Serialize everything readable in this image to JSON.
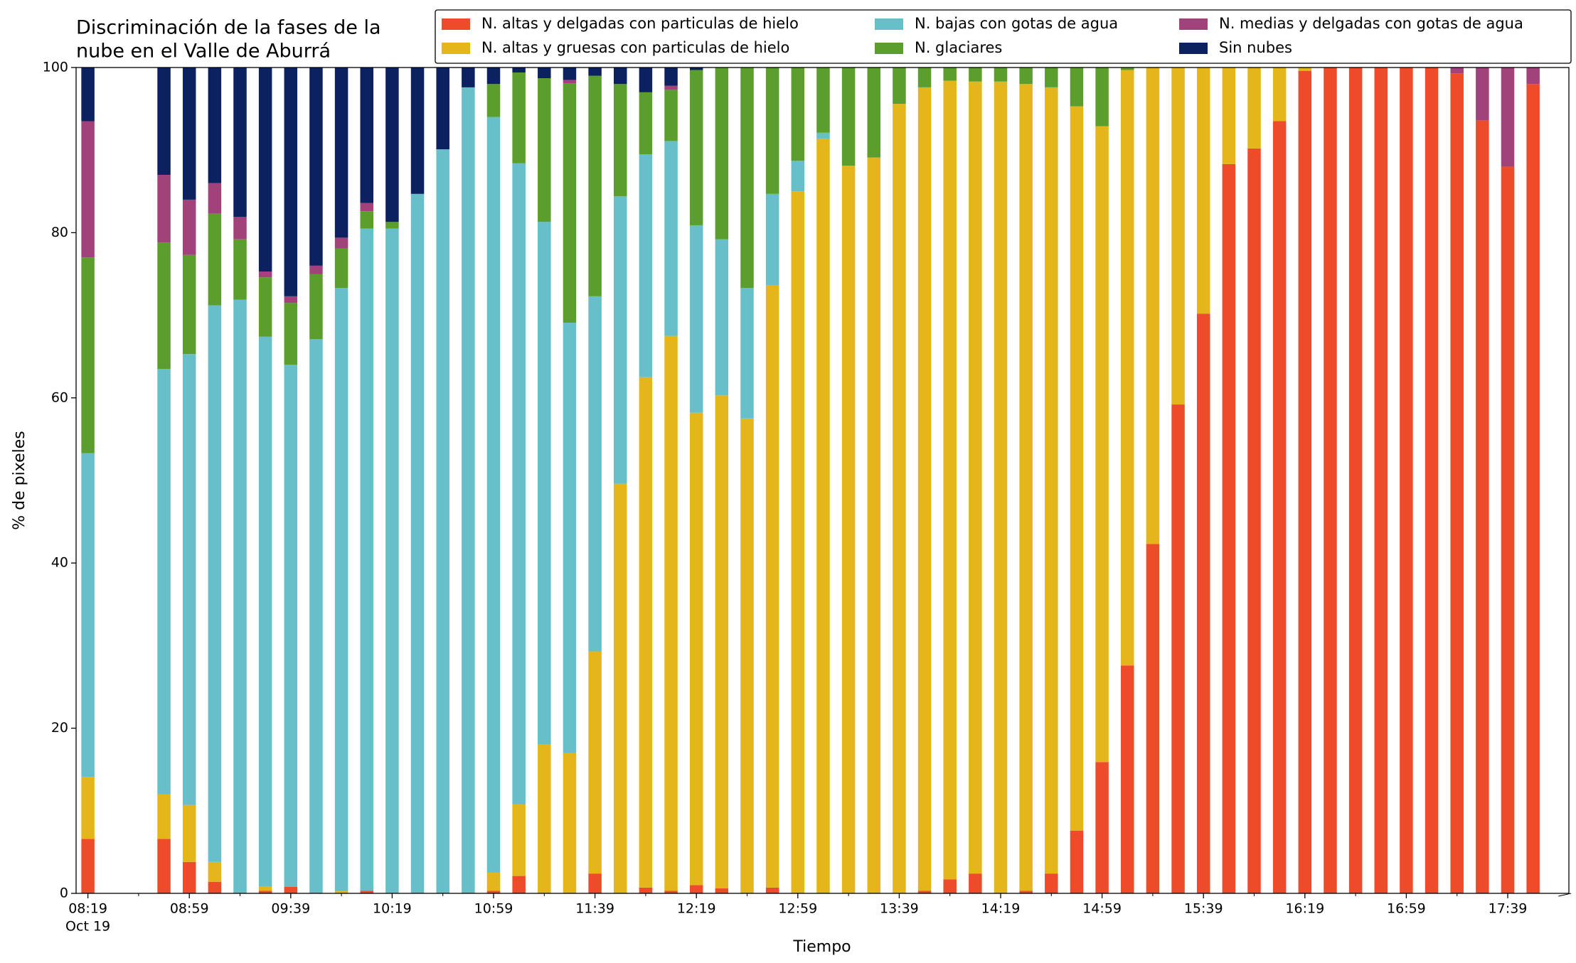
{
  "chart_data": {
    "type": "stacked_bar",
    "title": [
      "Discriminación de la fases de la",
      "nube en el Valle de Aburrá"
    ],
    "xlabel": "Tiempo",
    "ylabel": "% de pixeles",
    "x_date_label": "Oct 19",
    "categories": [
      "08:19",
      null,
      null,
      null,
      "08:59",
      null,
      null,
      null,
      "09:39",
      null,
      null,
      null,
      "10:19",
      null,
      null,
      null,
      "10:59",
      null,
      null,
      null,
      "11:39",
      null,
      null,
      null,
      "12:19",
      null,
      null,
      null,
      "12:59",
      null,
      null,
      null,
      "13:39",
      null,
      null,
      null,
      "14:19",
      null,
      null,
      null,
      "14:59",
      null,
      null,
      null,
      "15:39",
      null,
      null,
      null,
      "16:19",
      null,
      null,
      null,
      "16:59",
      null,
      null,
      null,
      "17:39",
      null
    ],
    "ylim": [
      0,
      100
    ],
    "yticks": [
      0,
      20,
      40,
      60,
      80,
      100
    ],
    "legend": "top",
    "series": [
      {
        "name": "N. altas y delgadas con particulas de hielo",
        "color": "#ee4b2b",
        "values": [
          6.6,
          null,
          null,
          6.6,
          3.8,
          1.4,
          0,
          0.3,
          0.8,
          0,
          0,
          0.3,
          0,
          0,
          0,
          0,
          0.3,
          2.1,
          0,
          0,
          2.4,
          0,
          0.7,
          0.3,
          1,
          0.6,
          0,
          0.7,
          0,
          0,
          0,
          0,
          0,
          0.3,
          1.7,
          2.4,
          0,
          0.3,
          2.4,
          7.6,
          15.9,
          27.6,
          42.3,
          59.2,
          70.2,
          88.3,
          90.2,
          93.5,
          99.6,
          100,
          100,
          100,
          100,
          100,
          99.3,
          93.6,
          88,
          98
        ]
      },
      {
        "name": "N. altas y gruesas con particulas de hielo",
        "color": "#e4b61a",
        "values": [
          7.5,
          null,
          null,
          5.4,
          6.9,
          2.4,
          0,
          0.5,
          0,
          0,
          0.3,
          0,
          0,
          0,
          0,
          0,
          2.2,
          8.7,
          18,
          17,
          26.9,
          49.6,
          61.8,
          67.2,
          57.2,
          59.7,
          57.5,
          72.9,
          85,
          91.4,
          88.1,
          89.1,
          95.6,
          97.3,
          96.7,
          95.9,
          98.3,
          97.7,
          95.2,
          87.7,
          77,
          72.1,
          57.7,
          40.8,
          29.8,
          11.7,
          9.8,
          6.5,
          0.4,
          0,
          0,
          0,
          0,
          0,
          0,
          0,
          0,
          0
        ]
      },
      {
        "name": "N. bajas con gotas de agua",
        "color": "#66bfc9",
        "values": [
          39.2,
          null,
          null,
          51.5,
          54.6,
          67.4,
          71.9,
          66.6,
          63.2,
          67.1,
          73,
          80.2,
          80.5,
          84.7,
          90.1,
          97.6,
          91.5,
          77.6,
          63.3,
          52.1,
          43,
          34.8,
          27,
          23.6,
          22.7,
          18.9,
          15.8,
          11.1,
          3.7,
          0.7,
          0,
          0,
          0,
          0,
          0,
          0,
          0,
          0,
          0,
          0,
          0,
          0,
          0,
          0,
          0,
          0,
          0,
          0,
          0,
          0,
          0,
          0,
          0,
          0,
          0,
          0,
          0,
          0
        ]
      },
      {
        "name": "N. glaciares",
        "color": "#5c9e2e",
        "values": [
          23.7,
          null,
          null,
          15.3,
          12,
          11.1,
          7.3,
          7.2,
          7.5,
          7.9,
          4.8,
          2.1,
          0.8,
          0,
          0,
          0,
          4,
          11,
          17.4,
          29,
          26.7,
          13.6,
          7.5,
          6.2,
          18.8,
          20.8,
          26.7,
          15.3,
          11.3,
          7.9,
          11.9,
          10.9,
          4.4,
          2.4,
          1.6,
          1.7,
          1.7,
          2,
          2.4,
          4.7,
          7.1,
          0.3,
          0,
          0,
          0,
          0,
          0,
          0,
          0,
          0,
          0,
          0,
          0,
          0,
          0,
          0,
          0,
          0
        ]
      },
      {
        "name": "N. medias y delgadas con gotas de agua",
        "color": "#a2427a",
        "values": [
          16.5,
          null,
          null,
          8.2,
          6.7,
          3.7,
          2.7,
          0.7,
          0.8,
          1,
          1.3,
          1,
          0,
          0,
          0,
          0,
          0,
          0,
          0,
          0.4,
          0,
          0,
          0,
          0.5,
          0,
          0,
          0,
          0,
          0,
          0,
          0,
          0,
          0,
          0,
          0,
          0,
          0,
          0,
          0,
          0,
          0,
          0,
          0,
          0,
          0,
          0,
          0,
          0,
          0,
          0,
          0,
          0,
          0,
          0,
          0.7,
          6.4,
          12,
          2
        ]
      },
      {
        "name": "Sin nubes",
        "color": "#0b2160",
        "values": [
          6.5,
          null,
          null,
          13,
          16,
          14,
          18.1,
          24.7,
          27.7,
          24,
          20.6,
          16.4,
          18.7,
          15.3,
          9.9,
          2.4,
          2,
          0.6,
          1.3,
          1.5,
          1,
          2,
          3,
          2.2,
          0.3,
          0,
          0,
          0,
          0,
          0,
          0,
          0,
          0,
          0,
          0,
          0,
          0,
          0,
          0,
          0,
          0,
          0,
          0,
          0,
          0,
          0,
          0,
          0,
          0,
          0,
          0,
          0,
          0,
          0,
          0,
          0,
          0,
          0
        ]
      }
    ]
  }
}
